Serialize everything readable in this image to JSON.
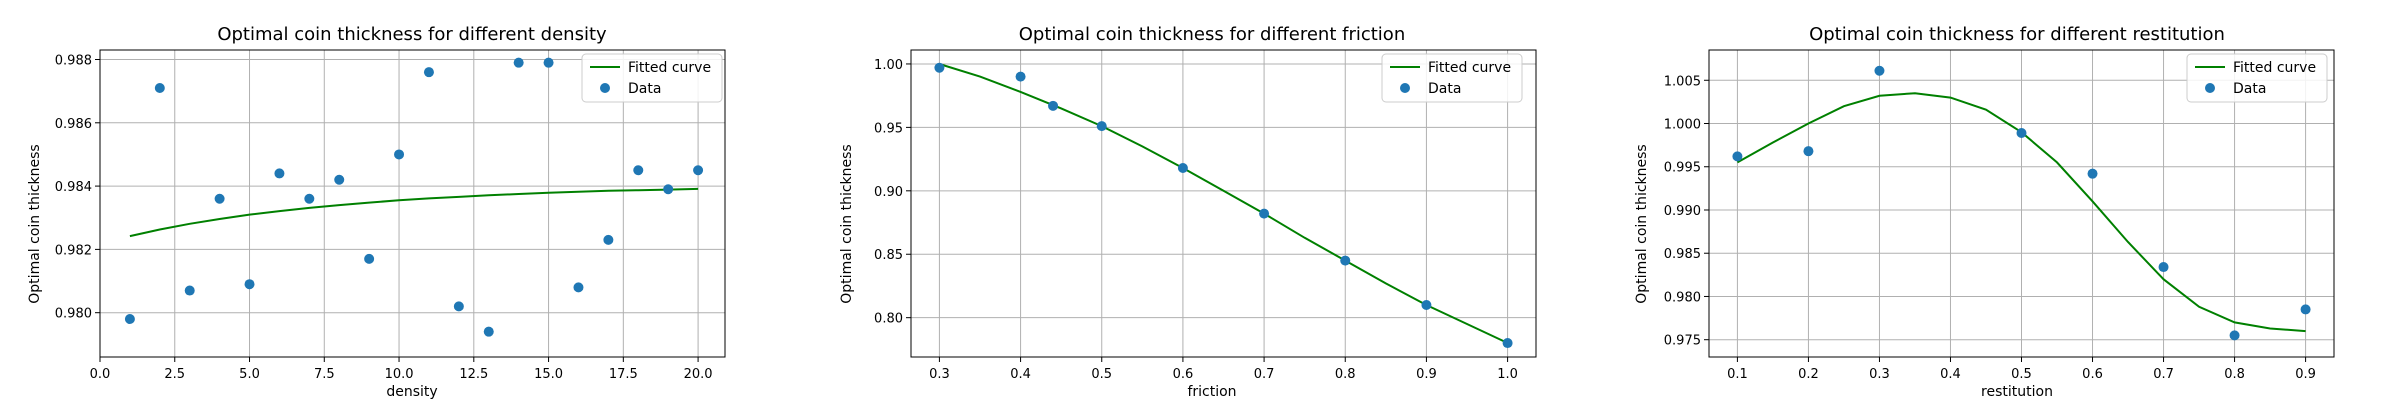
{
  "chart_data": [
    {
      "type": "scatter",
      "title": "Optimal coin thickness for different density",
      "xlabel": "density",
      "ylabel": "Optimal coin thickness",
      "xlim": [
        0.0,
        20.9
      ],
      "ylim": [
        0.9786,
        0.9883
      ],
      "xticks": [
        0.0,
        2.5,
        5.0,
        7.5,
        10.0,
        12.5,
        15.0,
        17.5,
        20.0
      ],
      "xtick_labels": [
        "0.0",
        "2.5",
        "5.0",
        "7.5",
        "10.0",
        "12.5",
        "15.0",
        "17.5",
        "20.0"
      ],
      "yticks": [
        0.98,
        0.982,
        0.984,
        0.986,
        0.988
      ],
      "ytick_labels": [
        "0.980",
        "0.982",
        "0.984",
        "0.986",
        "0.988"
      ],
      "grid": true,
      "legend_position": "top-right",
      "series": [
        {
          "name": "Fitted curve",
          "kind": "line",
          "color": "#008000",
          "x": [
            1,
            2,
            3,
            4,
            5,
            6,
            7,
            8,
            9,
            10,
            11,
            12,
            13,
            14,
            15,
            16,
            17,
            18,
            19,
            20
          ],
          "y": [
            0.98242,
            0.98263,
            0.98281,
            0.98296,
            0.9831,
            0.98321,
            0.98331,
            0.9834,
            0.98348,
            0.98355,
            0.98361,
            0.98366,
            0.98371,
            0.98375,
            0.98379,
            0.98382,
            0.98385,
            0.98387,
            0.98389,
            0.98391
          ]
        },
        {
          "name": "Data",
          "kind": "points",
          "color": "#1f77b4",
          "x": [
            1,
            2,
            3,
            4,
            5,
            6,
            7,
            8,
            9,
            10,
            11,
            12,
            13,
            14,
            15,
            16,
            17,
            18,
            19,
            20
          ],
          "y": [
            0.9798,
            0.9871,
            0.9807,
            0.9836,
            0.9809,
            0.9844,
            0.9836,
            0.9842,
            0.9817,
            0.985,
            0.9876,
            0.9802,
            0.9794,
            0.9879,
            0.9879,
            0.9808,
            0.9823,
            0.9845,
            0.9839,
            0.9845
          ]
        }
      ]
    },
    {
      "type": "scatter",
      "title": "Optimal coin thickness for different friction",
      "xlabel": "friction",
      "ylabel": "Optimal coin thickness",
      "xlim": [
        0.265,
        1.035
      ],
      "ylim": [
        0.769,
        1.011
      ],
      "xticks": [
        0.3,
        0.4,
        0.5,
        0.6,
        0.7,
        0.8,
        0.9,
        1.0
      ],
      "xtick_labels": [
        "0.3",
        "0.4",
        "0.5",
        "0.6",
        "0.7",
        "0.8",
        "0.9",
        "1.0"
      ],
      "yticks": [
        0.8,
        0.85,
        0.9,
        0.95,
        1.0
      ],
      "ytick_labels": [
        "0.80",
        "0.85",
        "0.90",
        "0.95",
        "1.00"
      ],
      "grid": true,
      "legend_position": "top-right",
      "series": [
        {
          "name": "Fitted curve",
          "kind": "line",
          "color": "#008000",
          "x": [
            0.3,
            0.35,
            0.4,
            0.45,
            0.5,
            0.55,
            0.6,
            0.65,
            0.7,
            0.75,
            0.8,
            0.85,
            0.9,
            0.95,
            1.0
          ],
          "y": [
            1.0,
            0.99,
            0.978,
            0.965,
            0.951,
            0.935,
            0.918,
            0.9,
            0.882,
            0.863,
            0.845,
            0.827,
            0.81,
            0.795,
            0.78
          ]
        },
        {
          "name": "Data",
          "kind": "points",
          "color": "#1f77b4",
          "x": [
            0.3,
            0.4,
            0.44,
            0.5,
            0.6,
            0.7,
            0.8,
            0.9,
            1.0
          ],
          "y": [
            0.997,
            0.99,
            0.967,
            0.951,
            0.918,
            0.882,
            0.845,
            0.81,
            0.78
          ]
        }
      ]
    },
    {
      "type": "scatter",
      "title": "Optimal coin thickness for different restitution",
      "xlabel": "restitution",
      "ylabel": "Optimal coin thickness",
      "xlim": [
        0.06,
        0.94
      ],
      "ylim": [
        0.973,
        1.0085
      ],
      "xticks": [
        0.1,
        0.2,
        0.3,
        0.4,
        0.5,
        0.6,
        0.7,
        0.8,
        0.9
      ],
      "xtick_labels": [
        "0.1",
        "0.2",
        "0.3",
        "0.4",
        "0.5",
        "0.6",
        "0.7",
        "0.8",
        "0.9"
      ],
      "yticks": [
        0.975,
        0.98,
        0.985,
        0.99,
        0.995,
        1.0,
        1.005
      ],
      "ytick_labels": [
        "0.975",
        "0.980",
        "0.985",
        "0.990",
        "0.995",
        "1.000",
        "1.005"
      ],
      "grid": true,
      "legend_position": "top-right",
      "series": [
        {
          "name": "Fitted curve",
          "kind": "line",
          "color": "#008000",
          "x": [
            0.1,
            0.15,
            0.2,
            0.25,
            0.3,
            0.35,
            0.4,
            0.45,
            0.5,
            0.55,
            0.6,
            0.65,
            0.7,
            0.75,
            0.8,
            0.85,
            0.9
          ],
          "y": [
            0.9955,
            0.9978,
            1.0,
            1.002,
            1.0032,
            1.0035,
            1.003,
            1.0016,
            0.999,
            0.9955,
            0.991,
            0.9863,
            0.982,
            0.9788,
            0.977,
            0.9763,
            0.976
          ]
        },
        {
          "name": "Data",
          "kind": "points",
          "color": "#1f77b4",
          "x": [
            0.1,
            0.2,
            0.3,
            0.5,
            0.6,
            0.7,
            0.8,
            0.9
          ],
          "y": [
            0.9962,
            0.9968,
            1.0061,
            0.9989,
            0.9942,
            0.9834,
            0.9755,
            0.9785
          ]
        }
      ]
    }
  ]
}
